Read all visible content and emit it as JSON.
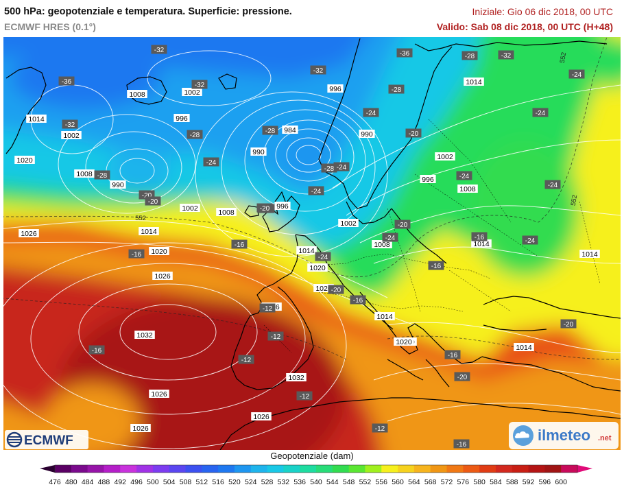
{
  "header": {
    "title": "500 hPa: geopotenziale e temperatura. Superficie: pressione.",
    "model": "ECMWF HRES (0.1°)",
    "init": "Iniziale: Gio 06 dic 2018, 00 UTC",
    "valid": "Valido: Sab 08 dic 2018, 00 UTC (H+48)"
  },
  "colors": {
    "blue": "#1e64f0",
    "cyan": "#19c8e6",
    "green": "#28dc5a",
    "yellow": "#f6f01e",
    "orange": "#f08c14",
    "red": "#c81e14",
    "darkred": "#a01414"
  },
  "legend": {
    "title": "Geopotenziale (dam)",
    "ticks": [
      "476",
      "480",
      "484",
      "488",
      "492",
      "496",
      "500",
      "504",
      "508",
      "512",
      "516",
      "520",
      "524",
      "528",
      "532",
      "536",
      "540",
      "544",
      "548",
      "552",
      "556",
      "560",
      "564",
      "568",
      "572",
      "576",
      "580",
      "584",
      "588",
      "592",
      "596",
      "600"
    ],
    "colors": [
      "#5a0064",
      "#7a0a8c",
      "#9614a8",
      "#b41ec8",
      "#c832dc",
      "#a032e6",
      "#7c3cf0",
      "#5a46f0",
      "#3c50f0",
      "#2864f0",
      "#1e78f0",
      "#1e96f0",
      "#1eb4ec",
      "#19c8e6",
      "#19d2c8",
      "#1edca0",
      "#28dc78",
      "#32dc50",
      "#5ae632",
      "#a0f01e",
      "#f6f01e",
      "#f6d21e",
      "#f6b41e",
      "#f09614",
      "#f07814",
      "#ec5a14",
      "#e03c14",
      "#d2281e",
      "#c81e14",
      "#b41414",
      "#a01414",
      "#c80a5a"
    ]
  },
  "pressure_labels": [
    "1008",
    "1002",
    "1014",
    "1002",
    "1020",
    "996",
    "1008",
    "990",
    "1002",
    "1008",
    "990",
    "984",
    "996",
    "996",
    "990",
    "1014",
    "1002",
    "996",
    "1008",
    "1002",
    "1014",
    "1008",
    "1026",
    "1014",
    "1020",
    "1014",
    "1020",
    "1026",
    "1014",
    "1020",
    "1026",
    "1032",
    "1020",
    "1014",
    "1032",
    "1026",
    "1026",
    "1026",
    "1020",
    "1014"
  ],
  "temp_labels": [
    "-36",
    "-32",
    "-32",
    "-32",
    "-32",
    "-36",
    "-28",
    "-32",
    "-28",
    "-28",
    "-28",
    "-24",
    "-24",
    "-24",
    "-28",
    "-28",
    "-24",
    "-20",
    "-24",
    "-24",
    "-24",
    "-20",
    "-24",
    "-24",
    "-20",
    "-24",
    "-24",
    "-16",
    "-20",
    "-16",
    "-20",
    "-20",
    "-16",
    "-12",
    "-12",
    "-12",
    "-16",
    "-16",
    "-12",
    "-16",
    "-20",
    "-20",
    "-16",
    "-12",
    "-16",
    "-24"
  ],
  "contour_labels": [
    "552",
    "552",
    "552"
  ],
  "logos": {
    "ecmwf": "ECMWF",
    "ilmeteo": "ilmeteo",
    "ilmeteo_suffix": ".net"
  }
}
